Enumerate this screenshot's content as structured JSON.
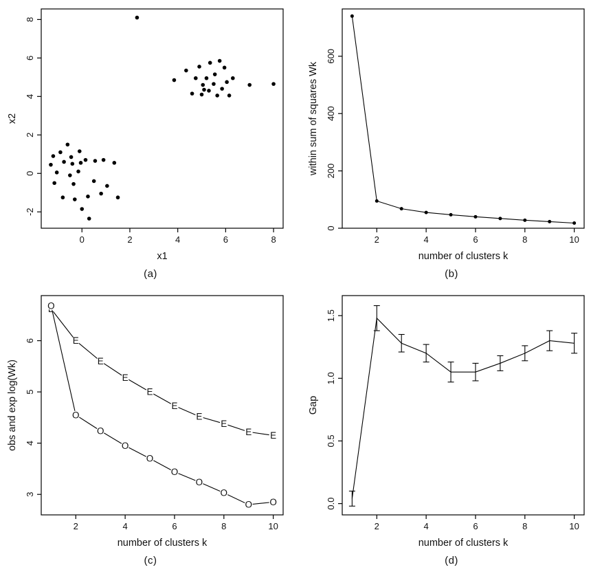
{
  "figure": {
    "background": "#ffffff",
    "line_color": "#000000",
    "point_color": "#000000"
  },
  "chart_data": [
    {
      "type": "scatter",
      "caption": "(a)",
      "xlabel": "x1",
      "ylabel": "x2",
      "xlim": [
        -1.7,
        8.4
      ],
      "ylim": [
        -2.85,
        8.55
      ],
      "xticks": [
        0,
        2,
        4,
        6,
        8
      ],
      "yticks": [
        -2,
        0,
        2,
        4,
        6,
        8
      ],
      "grid": false,
      "points": [
        [
          -1.2,
          0.9
        ],
        [
          -0.9,
          1.1
        ],
        [
          -0.6,
          1.5
        ],
        [
          -0.45,
          0.85
        ],
        [
          -0.1,
          1.15
        ],
        [
          0.15,
          0.7
        ],
        [
          -1.3,
          0.45
        ],
        [
          -0.75,
          0.6
        ],
        [
          -0.4,
          0.5
        ],
        [
          -0.05,
          0.55
        ],
        [
          0.55,
          0.65
        ],
        [
          0.9,
          0.7
        ],
        [
          1.35,
          0.55
        ],
        [
          -1.05,
          0.05
        ],
        [
          -0.5,
          -0.1
        ],
        [
          -0.15,
          0.1
        ],
        [
          -1.15,
          -0.5
        ],
        [
          -0.35,
          -0.55
        ],
        [
          0.5,
          -0.4
        ],
        [
          1.05,
          -0.65
        ],
        [
          -0.8,
          -1.25
        ],
        [
          -0.3,
          -1.35
        ],
        [
          0.25,
          -1.2
        ],
        [
          0.8,
          -1.05
        ],
        [
          1.5,
          -1.25
        ],
        [
          0.0,
          -1.85
        ],
        [
          0.3,
          -2.35
        ],
        [
          2.3,
          8.1
        ],
        [
          3.85,
          4.85
        ],
        [
          4.35,
          5.35
        ],
        [
          4.6,
          4.15
        ],
        [
          4.75,
          4.95
        ],
        [
          4.9,
          5.55
        ],
        [
          5.0,
          4.1
        ],
        [
          5.05,
          4.6
        ],
        [
          5.2,
          4.95
        ],
        [
          5.3,
          4.3
        ],
        [
          5.35,
          5.75
        ],
        [
          5.5,
          4.65
        ],
        [
          5.55,
          5.15
        ],
        [
          5.65,
          4.05
        ],
        [
          5.75,
          5.85
        ],
        [
          5.85,
          4.4
        ],
        [
          5.95,
          5.5
        ],
        [
          6.05,
          4.75
        ],
        [
          6.15,
          4.05
        ],
        [
          6.3,
          4.95
        ],
        [
          7.0,
          4.6
        ],
        [
          8.0,
          4.65
        ],
        [
          5.1,
          4.35
        ]
      ]
    },
    {
      "type": "line",
      "caption": "(b)",
      "xlabel": "number of clusters k",
      "ylabel": "within sum of squares Wk",
      "xlim": [
        0.6,
        10.4
      ],
      "ylim": [
        0,
        765
      ],
      "xticks": [
        2,
        4,
        6,
        8,
        10
      ],
      "yticks": [
        0,
        200,
        400,
        600
      ],
      "grid": false,
      "x": [
        1,
        2,
        3,
        4,
        5,
        6,
        7,
        8,
        9,
        10
      ],
      "values": [
        740,
        95,
        68,
        55,
        47,
        40,
        34,
        28,
        23,
        18
      ],
      "marker": "dot"
    },
    {
      "type": "line",
      "caption": "(c)",
      "xlabel": "number of clusters k",
      "ylabel": "obs and exp log(Wk)",
      "xlim": [
        0.6,
        10.4
      ],
      "ylim": [
        2.6,
        6.88
      ],
      "xticks": [
        2,
        4,
        6,
        8,
        10
      ],
      "yticks": [
        3,
        4,
        5,
        6
      ],
      "grid": false,
      "x": [
        1,
        2,
        3,
        4,
        5,
        6,
        7,
        8,
        9,
        10
      ],
      "series": [
        {
          "name": "expected log(Wk)",
          "marker": "E",
          "values": [
            6.62,
            6.0,
            5.6,
            5.28,
            5.0,
            4.73,
            4.52,
            4.38,
            4.22,
            4.15
          ]
        },
        {
          "name": "observed log(Wk)",
          "marker": "O",
          "values": [
            6.68,
            4.55,
            4.24,
            3.95,
            3.7,
            3.44,
            3.24,
            3.03,
            2.8,
            2.85
          ]
        }
      ]
    },
    {
      "type": "line",
      "caption": "(d)",
      "xlabel": "number of clusters k",
      "ylabel": "Gap",
      "xlim": [
        0.6,
        10.4
      ],
      "ylim": [
        -0.09,
        1.66
      ],
      "xticks": [
        2,
        4,
        6,
        8,
        10
      ],
      "yticks": [
        0,
        0.5,
        1,
        1.5
      ],
      "yticklabels": [
        "0.0",
        "0.5",
        "1.0",
        "1.5"
      ],
      "grid": false,
      "x": [
        1,
        2,
        3,
        4,
        5,
        6,
        7,
        8,
        9,
        10
      ],
      "values": [
        0.04,
        1.48,
        1.28,
        1.2,
        1.05,
        1.05,
        1.12,
        1.2,
        1.3,
        1.28
      ],
      "errors": [
        0.06,
        0.1,
        0.07,
        0.07,
        0.08,
        0.07,
        0.06,
        0.06,
        0.08,
        0.08
      ]
    }
  ]
}
